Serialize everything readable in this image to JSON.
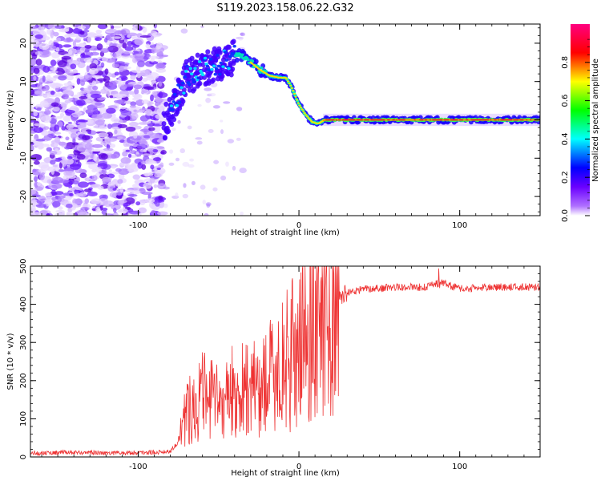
{
  "title": "S119.2023.158.06.22.G32",
  "chart_data": [
    {
      "type": "heatmap",
      "xlabel": "Height of straight line (km)",
      "ylabel": "Frequency (Hz)",
      "xlim": [
        -167,
        150
      ],
      "ylim": [
        -25,
        25
      ],
      "xticks": [
        -100,
        0,
        100
      ],
      "yticks": [
        -20,
        -10,
        0,
        10,
        20
      ],
      "ridge": {
        "x": [
          -84,
          -78,
          -70,
          -60,
          -50,
          -42,
          -36,
          -30,
          -24,
          -18,
          -12,
          -8,
          -4,
          0,
          4,
          8,
          12,
          16,
          20,
          40,
          60,
          80,
          100,
          120,
          150
        ],
        "y": [
          -1,
          4,
          11,
          13,
          14.5,
          16,
          17,
          15,
          13,
          11.5,
          11,
          11,
          8,
          4,
          1.5,
          -0.5,
          -1,
          0,
          0,
          0,
          0,
          0,
          0,
          0,
          0
        ]
      },
      "noise_region_x": [
        -167,
        -84
      ],
      "colorbar": {
        "label": "Normalized spectral amplitude",
        "range": [
          0,
          1
        ],
        "ticks": [
          "0.0",
          "0.2",
          "0.4",
          "0.6",
          "0.8"
        ],
        "colors": [
          "#ffffff",
          "#6a00ff",
          "#0000ff",
          "#00ffff",
          "#00ff00",
          "#ffff00",
          "#ff0000",
          "#ff0080"
        ]
      }
    },
    {
      "type": "line",
      "xlabel": "Height of straight line (km)",
      "ylabel": "SNR (10 * v/v)",
      "xlim": [
        -167,
        150
      ],
      "ylim": [
        0,
        500
      ],
      "xticks": [
        -100,
        0,
        100
      ],
      "yticks": [
        0,
        100,
        200,
        300,
        400,
        500
      ],
      "color": "#ee3333",
      "series": [
        {
          "x": [
            -167,
            -140,
            -110,
            -90,
            -80,
            -75,
            -70,
            -65,
            -60,
            -55,
            -50,
            -45,
            -40,
            -35,
            -30,
            -25,
            -20,
            -15,
            -10,
            -5,
            0,
            5,
            10,
            15,
            20,
            25,
            30,
            40,
            60,
            80,
            87,
            100,
            120,
            150
          ],
          "y": [
            10,
            12,
            10,
            12,
            15,
            40,
            120,
            140,
            160,
            150,
            140,
            160,
            170,
            175,
            180,
            175,
            200,
            220,
            240,
            260,
            300,
            320,
            360,
            380,
            380,
            420,
            430,
            440,
            445,
            445,
            460,
            440,
            445,
            445
          ]
        }
      ]
    }
  ]
}
